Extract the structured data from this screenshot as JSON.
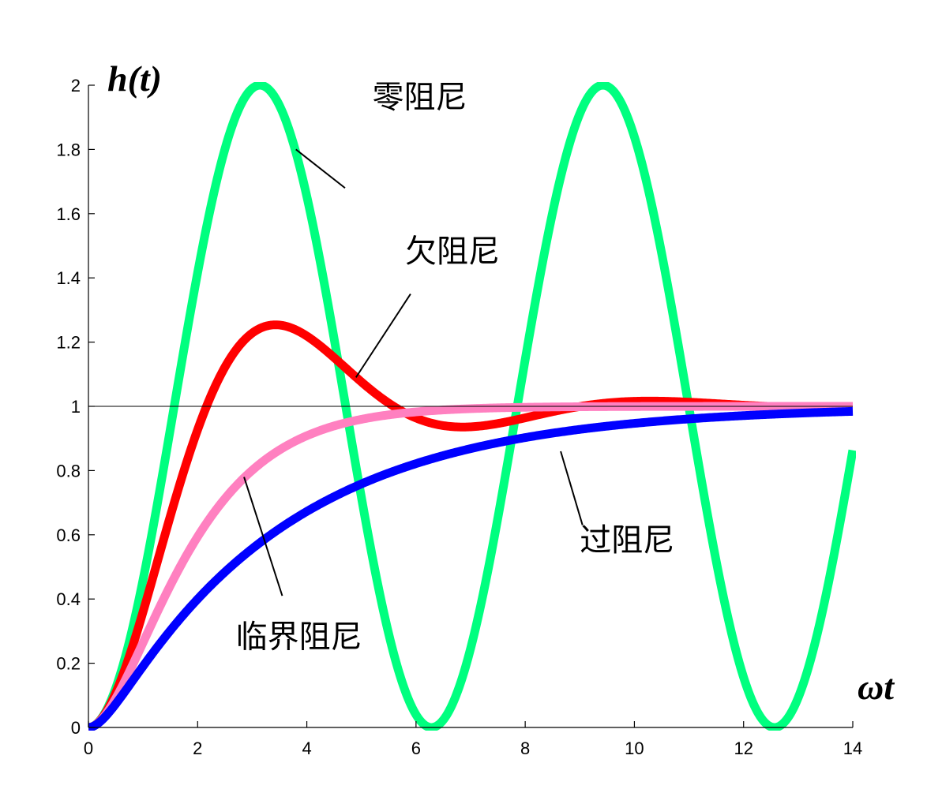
{
  "chart_data": {
    "type": "line",
    "title": "",
    "xlabel": "ωt",
    "ylabel": "h(t)",
    "xlim": [
      0,
      14
    ],
    "ylim": [
      0,
      2
    ],
    "x_ticks": [
      "0",
      "2",
      "4",
      "6",
      "8",
      "10",
      "12",
      "14"
    ],
    "y_ticks": [
      "0",
      "0.2",
      "0.4",
      "0.6",
      "0.8",
      "1",
      "1.2",
      "1.4",
      "1.6",
      "1.8",
      "2"
    ],
    "reference_line": {
      "y": 1
    },
    "grid": false,
    "legend": "none",
    "series": [
      {
        "name": "零阻尼",
        "color": "#00ff7f",
        "zeta": 0
      },
      {
        "name": "欠阻尼",
        "color": "#ff0000",
        "zeta": 0.4
      },
      {
        "name": "临界阻尼",
        "color": "#ff80c0",
        "zeta": 1
      },
      {
        "name": "过阻尼",
        "color": "#0000ff",
        "zeta": 1.8
      }
    ],
    "annotations": [
      {
        "text": "零阻尼",
        "series": "零阻尼",
        "x": 5.2,
        "y": 1.93,
        "x1": 3.8,
        "y1": 1.8,
        "x2": 4.7,
        "y2": 1.68
      },
      {
        "text": "欠阻尼",
        "series": "欠阻尼",
        "x": 5.8,
        "y": 1.45,
        "x1": 4.9,
        "y1": 1.09,
        "x2": 5.9,
        "y2": 1.35
      },
      {
        "text": "临界阻尼",
        "series": "临界阻尼",
        "x": 2.7,
        "y": 0.25,
        "x1": 2.85,
        "y1": 0.78,
        "x2": 3.55,
        "y2": 0.41
      },
      {
        "text": "过阻尼",
        "series": "过阻尼",
        "x": 9.0,
        "y": 0.55,
        "x1": 8.65,
        "y1": 0.86,
        "x2": 9.05,
        "y2": 0.63
      }
    ]
  }
}
